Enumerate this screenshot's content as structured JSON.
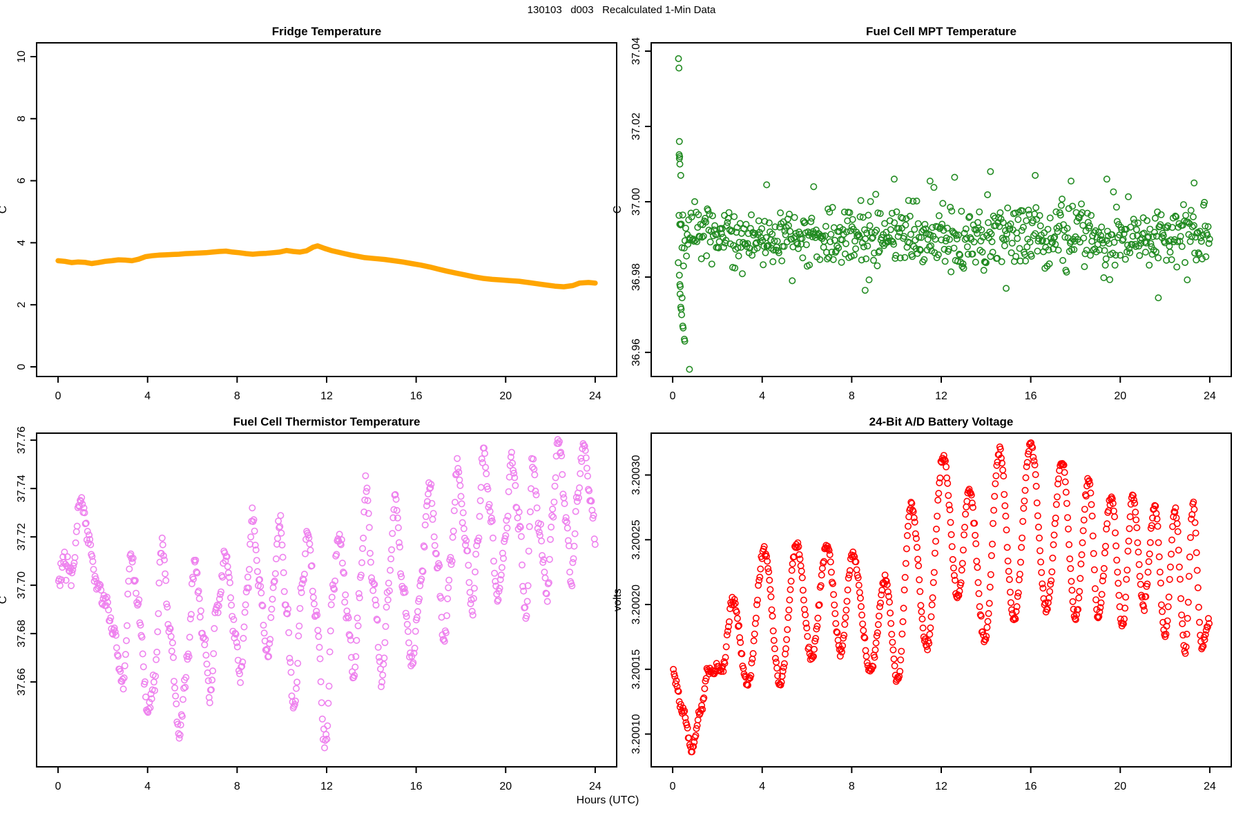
{
  "header": {
    "main_title": "130103   d003   Recalculated 1-Min Data",
    "xlabel": "Hours (UTC)"
  },
  "palette": {
    "fridge_line": "#FFA500",
    "mpt_points": "#228B22",
    "thermistor_points": "#EE82EE",
    "battery_points": "#FF0000",
    "axis": "#000000",
    "background": "#FFFFFF"
  },
  "chart_data": [
    {
      "id": "fridge-temperature",
      "type": "line",
      "title": "Fridge Temperature",
      "ylabel": "C",
      "xlabel_ticks": [
        "0",
        "4",
        "8",
        "12",
        "16",
        "20",
        "24"
      ],
      "xticks": [
        0,
        4,
        8,
        12,
        16,
        20,
        24
      ],
      "xlim": [
        -0.96,
        24.96
      ],
      "ylim": [
        -0.312,
        10.445
      ],
      "yticks": [
        0,
        2,
        4,
        6,
        8,
        10
      ],
      "ytick_labels": [
        "0",
        "2",
        "4",
        "6",
        "8",
        "10"
      ],
      "color": "#FFA500",
      "line_width": 7.5,
      "trend": [
        [
          0,
          3.42
        ],
        [
          0.3,
          3.4
        ],
        [
          0.6,
          3.36
        ],
        [
          0.9,
          3.38
        ],
        [
          1.2,
          3.37
        ],
        [
          1.5,
          3.33
        ],
        [
          1.8,
          3.36
        ],
        [
          2.1,
          3.4
        ],
        [
          2.4,
          3.42
        ],
        [
          2.7,
          3.45
        ],
        [
          3.0,
          3.44
        ],
        [
          3.3,
          3.42
        ],
        [
          3.6,
          3.47
        ],
        [
          3.9,
          3.55
        ],
        [
          4.2,
          3.58
        ],
        [
          4.5,
          3.6
        ],
        [
          4.8,
          3.61
        ],
        [
          5.1,
          3.62
        ],
        [
          5.4,
          3.63
        ],
        [
          5.7,
          3.65
        ],
        [
          6.0,
          3.66
        ],
        [
          6.3,
          3.67
        ],
        [
          6.6,
          3.68
        ],
        [
          6.9,
          3.7
        ],
        [
          7.2,
          3.72
        ],
        [
          7.5,
          3.73
        ],
        [
          7.8,
          3.7
        ],
        [
          8.1,
          3.68
        ],
        [
          8.4,
          3.65
        ],
        [
          8.7,
          3.63
        ],
        [
          9.0,
          3.65
        ],
        [
          9.3,
          3.66
        ],
        [
          9.6,
          3.68
        ],
        [
          9.9,
          3.7
        ],
        [
          10.2,
          3.75
        ],
        [
          10.5,
          3.72
        ],
        [
          10.8,
          3.7
        ],
        [
          11.1,
          3.74
        ],
        [
          11.4,
          3.86
        ],
        [
          11.6,
          3.9
        ],
        [
          11.9,
          3.82
        ],
        [
          12.2,
          3.75
        ],
        [
          12.5,
          3.7
        ],
        [
          12.8,
          3.65
        ],
        [
          13.1,
          3.6
        ],
        [
          13.4,
          3.56
        ],
        [
          13.7,
          3.52
        ],
        [
          14.0,
          3.5
        ],
        [
          14.3,
          3.48
        ],
        [
          14.6,
          3.46
        ],
        [
          15.0,
          3.42
        ],
        [
          15.4,
          3.38
        ],
        [
          15.8,
          3.33
        ],
        [
          16.2,
          3.28
        ],
        [
          16.6,
          3.22
        ],
        [
          17.0,
          3.15
        ],
        [
          17.4,
          3.08
        ],
        [
          17.8,
          3.02
        ],
        [
          18.2,
          2.96
        ],
        [
          18.6,
          2.9
        ],
        [
          19.0,
          2.85
        ],
        [
          19.4,
          2.82
        ],
        [
          19.8,
          2.8
        ],
        [
          20.2,
          2.78
        ],
        [
          20.6,
          2.76
        ],
        [
          21.0,
          2.72
        ],
        [
          21.4,
          2.68
        ],
        [
          21.8,
          2.64
        ],
        [
          22.2,
          2.6
        ],
        [
          22.6,
          2.58
        ],
        [
          23.0,
          2.62
        ],
        [
          23.3,
          2.7
        ],
        [
          23.7,
          2.72
        ],
        [
          24.0,
          2.7
        ]
      ],
      "scatter": null
    },
    {
      "id": "fuel-cell-mpt-temperature",
      "type": "scatter",
      "title": "Fuel Cell MPT Temperature",
      "ylabel": "C",
      "xlabel_ticks": [
        "0",
        "4",
        "8",
        "12",
        "16",
        "20",
        "24"
      ],
      "xticks": [
        0,
        4,
        8,
        12,
        16,
        20,
        24
      ],
      "xlim": [
        -0.96,
        24.96
      ],
      "ylim": [
        36.9536,
        37.0422
      ],
      "yticks": [
        36.96,
        36.98,
        37.0,
        37.02,
        37.04
      ],
      "ytick_labels": [
        "36.96",
        "36.98",
        "37.00",
        "37.02",
        "37.04"
      ],
      "color": "#228B22",
      "trend": [
        [
          0.25,
          36.9905
        ],
        [
          24,
          36.9905
        ]
      ],
      "scatter": {
        "x_start": 0.25,
        "x_end": 24.0,
        "step_hours": 0.0333,
        "noise_sd": 0.0042,
        "clip_low": 36.9765,
        "clip_high": 37.0045,
        "wobble_amp": 0.0008,
        "wobble_period": 7.0,
        "seed": 20130103,
        "extra_points": [
          [
            0.26,
            37.038
          ],
          [
            0.28,
            37.0355
          ],
          [
            0.3,
            37.016
          ],
          [
            0.29,
            37.0125
          ],
          [
            0.31,
            37.012
          ],
          [
            0.3,
            37.0115
          ],
          [
            0.32,
            37.01
          ],
          [
            0.36,
            37.007
          ],
          [
            0.3,
            36.9805
          ],
          [
            0.32,
            36.978
          ],
          [
            0.34,
            36.9775
          ],
          [
            0.33,
            36.9755
          ],
          [
            0.36,
            36.972
          ],
          [
            0.38,
            36.9715
          ],
          [
            0.4,
            36.97
          ],
          [
            0.42,
            36.9745
          ],
          [
            0.45,
            36.967
          ],
          [
            0.47,
            36.9665
          ],
          [
            0.52,
            36.9635
          ],
          [
            0.54,
            36.963
          ],
          [
            0.75,
            36.9555
          ],
          [
            8.6,
            36.9765
          ],
          [
            14.9,
            36.977
          ],
          [
            21.7,
            36.9745
          ],
          [
            9.9,
            37.006
          ],
          [
            11.5,
            37.0055
          ],
          [
            14.2,
            37.008
          ],
          [
            16.2,
            37.007
          ],
          [
            19.4,
            37.006
          ],
          [
            23.3,
            37.005
          ],
          [
            4.2,
            37.0045
          ],
          [
            6.3,
            37.004
          ],
          [
            12.6,
            37.0065
          ],
          [
            17.8,
            37.0055
          ]
        ]
      }
    },
    {
      "id": "fuel-cell-thermistor-temperature",
      "type": "scatter",
      "title": "Fuel Cell Thermistor Temperature",
      "ylabel": "C",
      "xlabel_ticks": [
        "0",
        "4",
        "8",
        "12",
        "16",
        "20",
        "24"
      ],
      "xticks": [
        0,
        4,
        8,
        12,
        16,
        20,
        24
      ],
      "xlim": [
        -0.96,
        24.96
      ],
      "ylim": [
        37.6249,
        37.7629
      ],
      "yticks": [
        37.66,
        37.68,
        37.7,
        37.72,
        37.74,
        37.76
      ],
      "ytick_labels": [
        "37.66",
        "37.68",
        "37.70",
        "37.72",
        "37.74",
        "37.76"
      ],
      "color": "#EE82EE",
      "trend": [
        [
          0.0,
          37.702
        ],
        [
          0.3,
          37.71
        ],
        [
          0.6,
          37.703
        ],
        [
          1.0,
          37.734
        ],
        [
          1.35,
          37.72
        ],
        [
          1.7,
          37.7
        ],
        [
          2.1,
          37.695
        ],
        [
          2.5,
          37.68
        ],
        [
          2.9,
          37.66
        ],
        [
          3.25,
          37.712
        ],
        [
          3.6,
          37.69
        ],
        [
          4.0,
          37.648
        ],
        [
          4.3,
          37.66
        ],
        [
          4.65,
          37.717
        ],
        [
          5.0,
          37.68
        ],
        [
          5.4,
          37.64
        ],
        [
          5.8,
          37.67
        ],
        [
          6.1,
          37.71
        ],
        [
          6.5,
          37.68
        ],
        [
          6.8,
          37.655
        ],
        [
          7.1,
          37.69
        ],
        [
          7.5,
          37.712
        ],
        [
          7.9,
          37.68
        ],
        [
          8.15,
          37.662
        ],
        [
          8.45,
          37.7
        ],
        [
          8.7,
          37.728
        ],
        [
          9.0,
          37.7
        ],
        [
          9.35,
          37.67
        ],
        [
          9.65,
          37.7
        ],
        [
          9.9,
          37.727
        ],
        [
          10.2,
          37.69
        ],
        [
          10.55,
          37.648
        ],
        [
          10.9,
          37.7
        ],
        [
          11.15,
          37.722
        ],
        [
          11.5,
          37.69
        ],
        [
          11.95,
          37.634
        ],
        [
          12.3,
          37.7
        ],
        [
          12.55,
          37.723
        ],
        [
          12.9,
          37.69
        ],
        [
          13.2,
          37.662
        ],
        [
          13.5,
          37.7
        ],
        [
          13.75,
          37.74
        ],
        [
          14.1,
          37.7
        ],
        [
          14.45,
          37.662
        ],
        [
          14.8,
          37.7
        ],
        [
          15.05,
          37.737
        ],
        [
          15.4,
          37.7
        ],
        [
          15.8,
          37.668
        ],
        [
          16.2,
          37.7
        ],
        [
          16.6,
          37.741
        ],
        [
          16.95,
          37.71
        ],
        [
          17.25,
          37.676
        ],
        [
          17.55,
          37.71
        ],
        [
          17.85,
          37.749
        ],
        [
          18.2,
          37.72
        ],
        [
          18.5,
          37.69
        ],
        [
          18.75,
          37.72
        ],
        [
          19.0,
          37.756
        ],
        [
          19.3,
          37.73
        ],
        [
          19.65,
          37.695
        ],
        [
          20.0,
          37.72
        ],
        [
          20.25,
          37.753
        ],
        [
          20.6,
          37.725
        ],
        [
          20.9,
          37.688
        ],
        [
          21.2,
          37.75
        ],
        [
          21.55,
          37.72
        ],
        [
          21.85,
          37.695
        ],
        [
          22.1,
          37.73
        ],
        [
          22.35,
          37.761
        ],
        [
          22.7,
          37.73
        ],
        [
          22.95,
          37.7
        ],
        [
          23.2,
          37.735
        ],
        [
          23.5,
          37.76
        ],
        [
          23.8,
          37.735
        ],
        [
          24.0,
          37.72
        ]
      ],
      "scatter": {
        "x_start": 0.02,
        "x_end": 24.0,
        "step_hours": 0.0333,
        "noise_sd": 0.0022,
        "clip_low": 37.628,
        "clip_high": 37.762,
        "wobble_amp": 0,
        "wobble_period": 1,
        "seed": 777003,
        "extra_points": []
      }
    },
    {
      "id": "battery-voltage",
      "type": "scatter",
      "title": "24-Bit A/D Battery Voltage",
      "ylabel": "volts",
      "xlabel_ticks": [
        "0",
        "4",
        "8",
        "12",
        "16",
        "20",
        "24"
      ],
      "xticks": [
        0,
        4,
        8,
        12,
        16,
        20,
        24
      ],
      "xlim": [
        -0.96,
        24.96
      ],
      "ylim": [
        3.2000747,
        3.2003323
      ],
      "yticks": [
        3.2001,
        3.20015,
        3.2002,
        3.20025,
        3.2003
      ],
      "ytick_labels": [
        "3.20010",
        "3.20015",
        "3.20020",
        "3.20025",
        "3.20030"
      ],
      "color": "#FF0000",
      "trend": [
        [
          0,
          3.20015
        ],
        [
          0.45,
          3.200118
        ],
        [
          0.85,
          3.200087
        ],
        [
          1.25,
          3.200118
        ],
        [
          1.6,
          3.20015
        ],
        [
          1.8,
          3.200146
        ],
        [
          2.0,
          3.200152
        ],
        [
          2.2,
          3.200149
        ],
        [
          2.7,
          3.200204
        ],
        [
          3.35,
          3.200138
        ],
        [
          4.1,
          3.200242
        ],
        [
          4.8,
          3.200139
        ],
        [
          5.55,
          3.200246
        ],
        [
          6.2,
          3.200158
        ],
        [
          6.9,
          3.200246
        ],
        [
          7.5,
          3.200163
        ],
        [
          8.05,
          3.200238
        ],
        [
          8.85,
          3.200148
        ],
        [
          9.5,
          3.200221
        ],
        [
          10.05,
          3.200141
        ],
        [
          10.65,
          3.200277
        ],
        [
          11.35,
          3.200167
        ],
        [
          12.1,
          3.200314
        ],
        [
          12.75,
          3.200206
        ],
        [
          13.25,
          3.200289
        ],
        [
          13.95,
          3.200172
        ],
        [
          14.6,
          3.200319
        ],
        [
          15.25,
          3.200188
        ],
        [
          16.0,
          3.200325
        ],
        [
          16.7,
          3.200196
        ],
        [
          17.4,
          3.200311
        ],
        [
          18.0,
          3.20019
        ],
        [
          18.6,
          3.200297
        ],
        [
          19.0,
          3.20019
        ],
        [
          19.6,
          3.200284
        ],
        [
          20.1,
          3.200183
        ],
        [
          20.55,
          3.200284
        ],
        [
          21.05,
          3.2002
        ],
        [
          21.55,
          3.200276
        ],
        [
          22.0,
          3.200176
        ],
        [
          22.45,
          3.200272
        ],
        [
          22.9,
          3.200163
        ],
        [
          23.25,
          3.200277
        ],
        [
          23.65,
          3.200168
        ],
        [
          24.0,
          3.200186
        ]
      ],
      "scatter": {
        "x_start": 0.03,
        "x_end": 24.0,
        "step_hours": 0.0333,
        "noise_sd": 1.8e-06,
        "clip_low": 3.200078,
        "clip_high": 3.20033,
        "wobble_amp": 0,
        "wobble_period": 1,
        "seed": 424242,
        "extra_points": []
      }
    }
  ],
  "layout_labels": {
    "panel_order": [
      "fridge-temperature",
      "fuel-cell-mpt-temperature",
      "fuel-cell-thermistor-temperature",
      "battery-voltage"
    ]
  }
}
